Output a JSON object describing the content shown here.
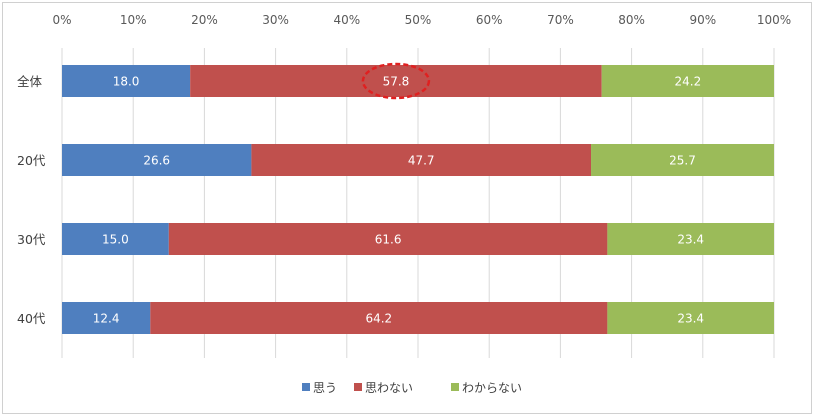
{
  "chart_data": {
    "type": "bar",
    "orientation": "horizontal",
    "stacked": "percent",
    "categories": [
      "全体",
      "20代",
      "30代",
      "40代"
    ],
    "series": [
      {
        "name": "思う",
        "values": [
          18.0,
          26.6,
          15.0,
          12.4
        ],
        "labels": [
          "18.0",
          "26.6",
          "15.0",
          "12.4"
        ],
        "color": "#4f7fbf"
      },
      {
        "name": "思わない",
        "values": [
          57.8,
          47.7,
          61.6,
          64.2
        ],
        "labels": [
          "57.8",
          "47.7",
          "61.6",
          "64.2"
        ],
        "color": "#c0504d"
      },
      {
        "name": "わからない",
        "values": [
          24.2,
          25.7,
          23.4,
          23.4
        ],
        "labels": [
          "24.2",
          "25.7",
          "23.4",
          "23.4"
        ],
        "color": "#9bbb59"
      }
    ],
    "x_ticks": [
      "0%",
      "10%",
      "20%",
      "30%",
      "40%",
      "50%",
      "60%",
      "70%",
      "80%",
      "90%",
      "100%"
    ],
    "xlim": [
      0,
      100
    ],
    "grid": true,
    "legend": "bottom",
    "highlight": {
      "category": "全体",
      "series": "思わない",
      "style": "red dashed ellipse",
      "color": "#e02020"
    }
  }
}
